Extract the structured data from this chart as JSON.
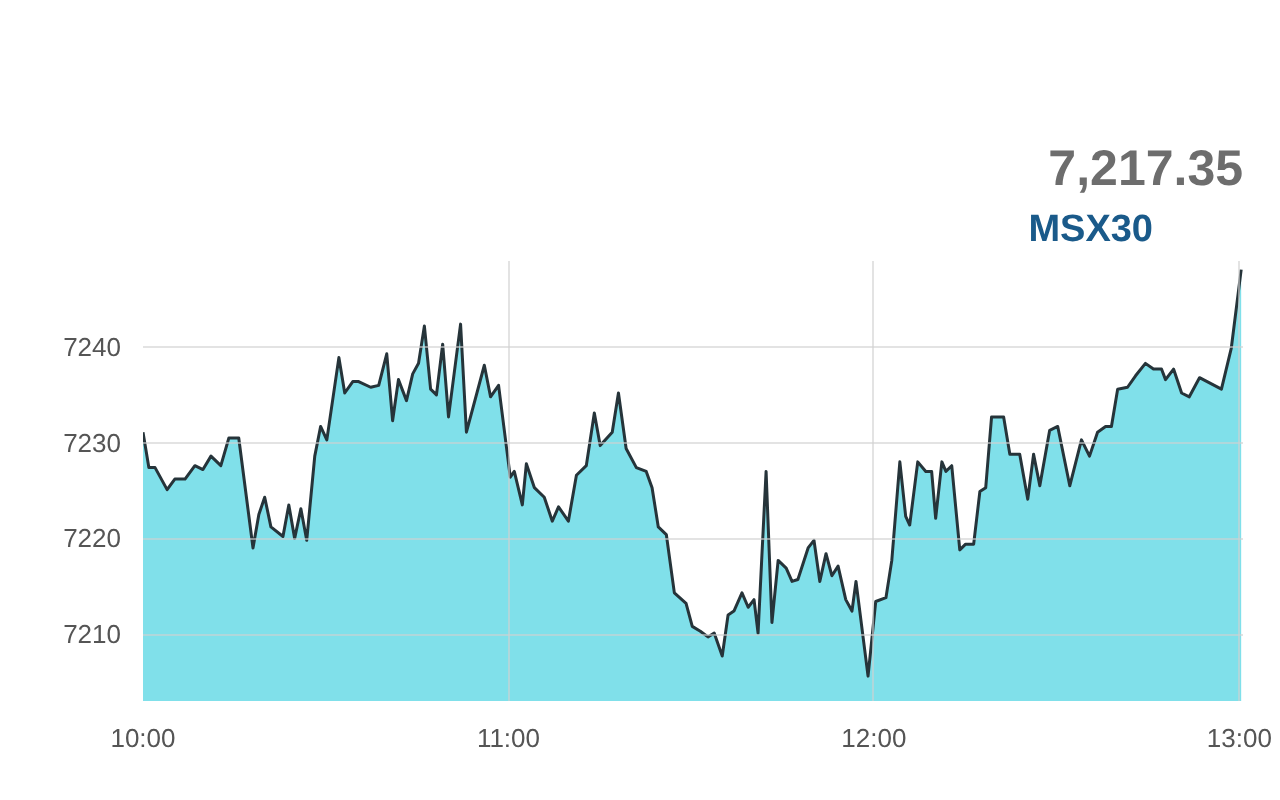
{
  "chart_data": {
    "type": "area",
    "annotations": [
      "7,217.35"
    ],
    "xlim": [
      10,
      13.01
    ],
    "xticks": [
      {
        "value": 10,
        "label": "10:00"
      },
      {
        "value": 11,
        "label": "11:00"
      },
      {
        "value": 12,
        "label": "12:00"
      },
      {
        "value": 13,
        "label": "13:00"
      }
    ],
    "ylim": [
      7203,
      7249
    ],
    "yticks": [
      7210,
      7220,
      7230,
      7240
    ],
    "grid": true,
    "x": [
      10.0,
      10.016,
      10.033,
      10.066,
      10.087,
      10.115,
      10.142,
      10.164,
      10.186,
      10.213,
      10.235,
      10.262,
      10.301,
      10.317,
      10.333,
      10.35,
      10.383,
      10.399,
      10.415,
      10.432,
      10.448,
      10.47,
      10.486,
      10.503,
      10.536,
      10.552,
      10.574,
      10.59,
      10.623,
      10.645,
      10.667,
      10.683,
      10.699,
      10.721,
      10.738,
      10.754,
      10.77,
      10.787,
      10.803,
      10.82,
      10.836,
      10.869,
      10.885,
      10.934,
      10.951,
      10.973,
      11.005,
      11.016,
      11.038,
      11.049,
      11.071,
      11.098,
      11.12,
      11.137,
      11.164,
      11.186,
      11.213,
      11.235,
      11.251,
      11.284,
      11.301,
      11.322,
      11.35,
      11.377,
      11.393,
      11.41,
      11.432,
      11.454,
      11.486,
      11.503,
      11.525,
      11.546,
      11.563,
      11.585,
      11.601,
      11.617,
      11.639,
      11.656,
      11.672,
      11.683,
      11.705,
      11.721,
      11.738,
      11.76,
      11.776,
      11.792,
      11.82,
      11.836,
      11.852,
      11.869,
      11.885,
      11.902,
      11.923,
      11.94,
      11.951,
      11.984,
      12.005,
      12.033,
      12.049,
      12.071,
      12.087,
      12.098,
      12.12,
      12.142,
      12.158,
      12.169,
      12.186,
      12.197,
      12.213,
      12.235,
      12.251,
      12.273,
      12.29,
      12.306,
      12.322,
      12.355,
      12.372,
      12.399,
      12.421,
      12.437,
      12.454,
      12.481,
      12.503,
      12.536,
      12.568,
      12.59,
      12.612,
      12.634,
      12.65,
      12.667,
      12.694,
      12.716,
      12.743,
      12.765,
      12.787,
      12.798,
      12.82,
      12.842,
      12.863,
      12.891,
      12.951,
      12.978,
      13.005
    ],
    "series": [
      {
        "name": "MSX30",
        "color": "#80e0ea",
        "values": [
          7231.1,
          7227.4,
          7227.4,
          7225.1,
          7226.2,
          7226.2,
          7227.6,
          7227.2,
          7228.6,
          7227.6,
          7230.5,
          7230.5,
          7219.0,
          7222.5,
          7224.3,
          7221.2,
          7220.2,
          7223.5,
          7220.0,
          7223.1,
          7219.8,
          7228.6,
          7231.7,
          7230.3,
          7238.9,
          7235.2,
          7236.4,
          7236.4,
          7235.8,
          7236.0,
          7239.3,
          7232.3,
          7236.6,
          7234.4,
          7237.2,
          7238.3,
          7242.2,
          7235.6,
          7235.0,
          7240.3,
          7232.7,
          7242.4,
          7231.1,
          7238.1,
          7234.8,
          7236.0,
          7226.4,
          7227.0,
          7223.5,
          7227.8,
          7225.3,
          7224.3,
          7221.8,
          7223.3,
          7221.8,
          7226.6,
          7227.6,
          7233.1,
          7229.7,
          7231.1,
          7235.2,
          7229.4,
          7227.4,
          7227.0,
          7225.3,
          7221.2,
          7220.4,
          7214.3,
          7213.2,
          7210.8,
          7210.3,
          7209.7,
          7210.1,
          7207.7,
          7212.0,
          7212.4,
          7214.3,
          7212.8,
          7213.6,
          7210.1,
          7227.0,
          7211.2,
          7217.7,
          7216.9,
          7215.5,
          7215.7,
          7219.0,
          7219.8,
          7215.5,
          7218.4,
          7216.1,
          7217.1,
          7213.6,
          7212.4,
          7215.5,
          7205.6,
          7213.4,
          7213.8,
          7217.7,
          7228.0,
          7222.3,
          7221.4,
          7228.0,
          7227.0,
          7227.0,
          7222.1,
          7228.0,
          7227.0,
          7227.6,
          7218.8,
          7219.4,
          7219.4,
          7224.9,
          7225.3,
          7232.7,
          7232.7,
          7228.8,
          7228.8,
          7224.1,
          7228.8,
          7225.5,
          7231.3,
          7231.7,
          7225.5,
          7230.3,
          7228.6,
          7231.1,
          7231.7,
          7231.7,
          7235.6,
          7235.8,
          7237.0,
          7238.3,
          7237.7,
          7237.7,
          7236.6,
          7237.7,
          7235.2,
          7234.8,
          7236.8,
          7235.6,
          7239.9,
          7248.1
        ]
      }
    ]
  }
}
